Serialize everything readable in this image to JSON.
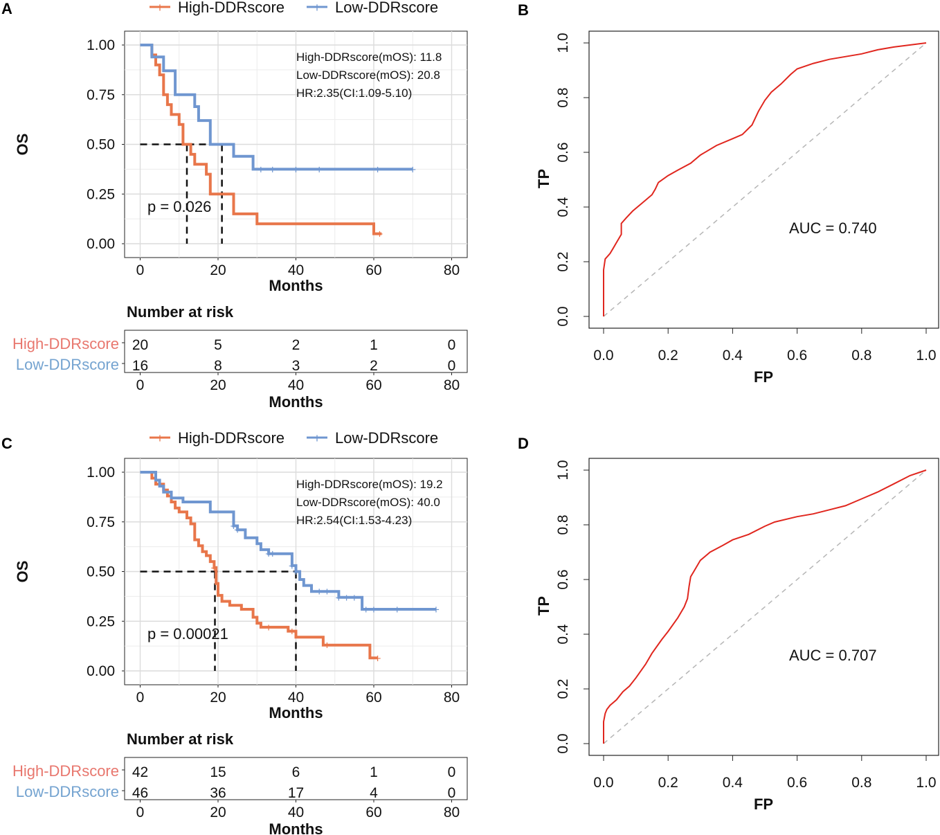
{
  "figure": {
    "panel_letters": [
      "A",
      "B",
      "C",
      "D"
    ]
  },
  "chart_data": [
    {
      "panel": "A",
      "type": "line",
      "subtype": "kaplan-meier",
      "legend": [
        "High-DDRscore",
        "Low-DDRscore"
      ],
      "colors": {
        "high": "#E8764A",
        "low": "#6F96D0",
        "risk_high_label": "#E8776E",
        "risk_low_label": "#74A3D0"
      },
      "ylabel": "OS",
      "xlabel": "Months",
      "xticks": [
        "0",
        "20",
        "40",
        "60",
        "80"
      ],
      "yticks": [
        "0.00",
        "0.25",
        "0.50",
        "0.75",
        "1.00"
      ],
      "xlim": [
        -4,
        84
      ],
      "ylim": [
        0,
        1
      ],
      "annotations": [
        "High-DDRscore(mOS):  11.8",
        "Low-DDRscore(mOS):  20.8",
        "HR:2.35(CI:1.09-5.10)"
      ],
      "pvalue": "p = 0.026",
      "median_lines": [
        12,
        21
      ],
      "series": [
        {
          "name": "High-DDRscore",
          "steps": [
            [
              0,
              1.0
            ],
            [
              3,
              1.0
            ],
            [
              3,
              0.95
            ],
            [
              4,
              0.95
            ],
            [
              4,
              0.9
            ],
            [
              5,
              0.9
            ],
            [
              5,
              0.85
            ],
            [
              6,
              0.85
            ],
            [
              6,
              0.75
            ],
            [
              7,
              0.75
            ],
            [
              7,
              0.7
            ],
            [
              8,
              0.7
            ],
            [
              8,
              0.65
            ],
            [
              10,
              0.65
            ],
            [
              10,
              0.6
            ],
            [
              11,
              0.6
            ],
            [
              11,
              0.5
            ],
            [
              13,
              0.5
            ],
            [
              13,
              0.45
            ],
            [
              14,
              0.45
            ],
            [
              14,
              0.4
            ],
            [
              17,
              0.4
            ],
            [
              17,
              0.35
            ],
            [
              18,
              0.35
            ],
            [
              18,
              0.25
            ],
            [
              24,
              0.25
            ],
            [
              24,
              0.15
            ],
            [
              30,
              0.15
            ],
            [
              30,
              0.1
            ],
            [
              60,
              0.1
            ],
            [
              60,
              0.05
            ],
            [
              62,
              0.05
            ]
          ],
          "censors": [
            [
              61.5,
              0.05
            ]
          ]
        },
        {
          "name": "Low-DDRscore",
          "steps": [
            [
              0,
              1.0
            ],
            [
              3,
              1.0
            ],
            [
              3,
              0.94
            ],
            [
              6,
              0.94
            ],
            [
              6,
              0.87
            ],
            [
              9,
              0.87
            ],
            [
              9,
              0.75
            ],
            [
              14,
              0.75
            ],
            [
              14,
              0.69
            ],
            [
              15,
              0.69
            ],
            [
              15,
              0.62
            ],
            [
              18,
              0.62
            ],
            [
              18,
              0.5
            ],
            [
              24,
              0.5
            ],
            [
              24,
              0.44
            ],
            [
              29,
              0.44
            ],
            [
              29,
              0.375
            ],
            [
              70,
              0.375
            ]
          ],
          "censors": [
            [
              31,
              0.375
            ],
            [
              34,
              0.375
            ],
            [
              40,
              0.375
            ],
            [
              46,
              0.375
            ],
            [
              61,
              0.375
            ],
            [
              70,
              0.375
            ]
          ]
        }
      ],
      "risk_table": {
        "title": "Number at risk",
        "row_labels": [
          "High-DDRscore",
          "Low-DDRscore"
        ],
        "times": [
          0,
          20,
          40,
          60,
          80
        ],
        "high": [
          "20",
          "5",
          "2",
          "1",
          "0"
        ],
        "low": [
          "16",
          "8",
          "3",
          "2",
          "0"
        ],
        "xticks": [
          "0",
          "20",
          "40",
          "60",
          "80"
        ],
        "xlabel": "Months"
      }
    },
    {
      "panel": "B",
      "type": "line",
      "subtype": "roc",
      "xlabel": "FP",
      "ylabel": "TP",
      "xticks": [
        "0.0",
        "0.2",
        "0.4",
        "0.6",
        "0.8",
        "1.0"
      ],
      "yticks": [
        "0.0",
        "0.2",
        "0.4",
        "0.6",
        "0.8",
        "1.0"
      ],
      "xlim": [
        -0.04,
        1.04
      ],
      "ylim": [
        -0.04,
        1.04
      ],
      "auc_label": "AUC =  0.740",
      "color": "#E0261E",
      "points": [
        [
          0,
          0
        ],
        [
          0,
          0.17
        ],
        [
          0.005,
          0.21
        ],
        [
          0.02,
          0.23
        ],
        [
          0.03,
          0.25
        ],
        [
          0.04,
          0.27
        ],
        [
          0.05,
          0.29
        ],
        [
          0.055,
          0.3
        ],
        [
          0.055,
          0.34
        ],
        [
          0.07,
          0.36
        ],
        [
          0.09,
          0.385
        ],
        [
          0.12,
          0.415
        ],
        [
          0.15,
          0.445
        ],
        [
          0.16,
          0.465
        ],
        [
          0.17,
          0.49
        ],
        [
          0.2,
          0.515
        ],
        [
          0.23,
          0.535
        ],
        [
          0.27,
          0.56
        ],
        [
          0.3,
          0.59
        ],
        [
          0.35,
          0.625
        ],
        [
          0.4,
          0.65
        ],
        [
          0.43,
          0.665
        ],
        [
          0.46,
          0.7
        ],
        [
          0.48,
          0.75
        ],
        [
          0.5,
          0.79
        ],
        [
          0.52,
          0.82
        ],
        [
          0.55,
          0.85
        ],
        [
          0.58,
          0.885
        ],
        [
          0.6,
          0.905
        ],
        [
          0.65,
          0.925
        ],
        [
          0.7,
          0.94
        ],
        [
          0.8,
          0.96
        ],
        [
          0.85,
          0.975
        ],
        [
          0.9,
          0.985
        ],
        [
          1.0,
          1.0
        ]
      ]
    },
    {
      "panel": "C",
      "type": "line",
      "subtype": "kaplan-meier",
      "legend": [
        "High-DDRscore",
        "Low-DDRscore"
      ],
      "colors": {
        "high": "#E8764A",
        "low": "#6F96D0",
        "risk_high_label": "#E8776E",
        "risk_low_label": "#74A3D0"
      },
      "ylabel": "OS",
      "xlabel": "Months",
      "xticks": [
        "0",
        "20",
        "40",
        "60",
        "80"
      ],
      "yticks": [
        "0.00",
        "0.25",
        "0.50",
        "0.75",
        "1.00"
      ],
      "xlim": [
        -4,
        84
      ],
      "ylim": [
        0,
        1
      ],
      "annotations": [
        "High-DDRscore(mOS):  19.2",
        "Low-DDRscore(mOS):  40.0",
        "HR:2.54(CI:1.53-4.23)"
      ],
      "pvalue": "p = 0.00021",
      "median_lines": [
        19.2,
        40
      ],
      "series": [
        {
          "name": "High-DDRscore",
          "steps": [
            [
              0,
              1.0
            ],
            [
              3,
              1.0
            ],
            [
              3,
              0.97
            ],
            [
              4,
              0.97
            ],
            [
              4,
              0.94
            ],
            [
              6,
              0.94
            ],
            [
              6,
              0.91
            ],
            [
              7,
              0.91
            ],
            [
              7,
              0.88
            ],
            [
              8,
              0.88
            ],
            [
              8,
              0.85
            ],
            [
              9,
              0.85
            ],
            [
              9,
              0.82
            ],
            [
              10,
              0.82
            ],
            [
              10,
              0.8
            ],
            [
              12,
              0.8
            ],
            [
              12,
              0.77
            ],
            [
              13,
              0.77
            ],
            [
              13,
              0.74
            ],
            [
              14,
              0.74
            ],
            [
              14,
              0.66
            ],
            [
              15,
              0.66
            ],
            [
              15,
              0.63
            ],
            [
              16,
              0.63
            ],
            [
              16,
              0.6
            ],
            [
              17,
              0.6
            ],
            [
              17,
              0.58
            ],
            [
              18,
              0.58
            ],
            [
              18,
              0.55
            ],
            [
              19,
              0.55
            ],
            [
              19,
              0.52
            ],
            [
              19.5,
              0.52
            ],
            [
              19.5,
              0.44
            ],
            [
              20,
              0.44
            ],
            [
              20,
              0.38
            ],
            [
              21,
              0.38
            ],
            [
              21,
              0.35
            ],
            [
              23,
              0.35
            ],
            [
              23,
              0.33
            ],
            [
              26,
              0.33
            ],
            [
              26,
              0.31
            ],
            [
              29,
              0.31
            ],
            [
              29,
              0.27
            ],
            [
              30,
              0.27
            ],
            [
              30,
              0.24
            ],
            [
              31,
              0.24
            ],
            [
              31,
              0.22
            ],
            [
              38,
              0.22
            ],
            [
              38,
              0.2
            ],
            [
              40,
              0.2
            ],
            [
              40,
              0.17
            ],
            [
              47,
              0.17
            ],
            [
              47,
              0.13
            ],
            [
              59,
              0.13
            ],
            [
              59,
              0.065
            ],
            [
              61,
              0.065
            ]
          ],
          "censors": [
            [
              19,
              0.52
            ],
            [
              33,
              0.22
            ],
            [
              39,
              0.2
            ],
            [
              48,
              0.13
            ],
            [
              61,
              0.065
            ]
          ]
        },
        {
          "name": "Low-DDRscore",
          "steps": [
            [
              0,
              1.0
            ],
            [
              4,
              1.0
            ],
            [
              4,
              0.96
            ],
            [
              5,
              0.96
            ],
            [
              5,
              0.93
            ],
            [
              6,
              0.93
            ],
            [
              6,
              0.9
            ],
            [
              8,
              0.9
            ],
            [
              8,
              0.87
            ],
            [
              11,
              0.87
            ],
            [
              11,
              0.85
            ],
            [
              18,
              0.85
            ],
            [
              18,
              0.8
            ],
            [
              24,
              0.8
            ],
            [
              24,
              0.73
            ],
            [
              25,
              0.73
            ],
            [
              25,
              0.71
            ],
            [
              27,
              0.71
            ],
            [
              27,
              0.67
            ],
            [
              30,
              0.67
            ],
            [
              30,
              0.64
            ],
            [
              31,
              0.64
            ],
            [
              31,
              0.61
            ],
            [
              33,
              0.61
            ],
            [
              33,
              0.59
            ],
            [
              39,
              0.59
            ],
            [
              39,
              0.53
            ],
            [
              40,
              0.53
            ],
            [
              40,
              0.5
            ],
            [
              41,
              0.5
            ],
            [
              41,
              0.46
            ],
            [
              42,
              0.46
            ],
            [
              42,
              0.43
            ],
            [
              44,
              0.43
            ],
            [
              44,
              0.4
            ],
            [
              51,
              0.4
            ],
            [
              51,
              0.37
            ],
            [
              57,
              0.37
            ],
            [
              57,
              0.31
            ],
            [
              76,
              0.31
            ]
          ],
          "censors": [
            [
              24,
              0.73
            ],
            [
              25,
              0.71
            ],
            [
              33,
              0.59
            ],
            [
              34,
              0.59
            ],
            [
              39,
              0.53
            ],
            [
              40,
              0.5
            ],
            [
              46,
              0.4
            ],
            [
              48,
              0.4
            ],
            [
              51,
              0.37
            ],
            [
              53,
              0.37
            ],
            [
              55,
              0.37
            ],
            [
              58,
              0.31
            ],
            [
              60,
              0.31
            ],
            [
              66,
              0.31
            ],
            [
              76,
              0.31
            ]
          ]
        }
      ],
      "risk_table": {
        "title": "Number at risk",
        "row_labels": [
          "High-DDRscore",
          "Low-DDRscore"
        ],
        "times": [
          0,
          20,
          40,
          60,
          80
        ],
        "high": [
          "42",
          "15",
          "6",
          "1",
          "0"
        ],
        "low": [
          "46",
          "36",
          "17",
          "4",
          "0"
        ],
        "xticks": [
          "0",
          "20",
          "40",
          "60",
          "80"
        ],
        "xlabel": "Months"
      }
    },
    {
      "panel": "D",
      "type": "line",
      "subtype": "roc",
      "xlabel": "FP",
      "ylabel": "TP",
      "xticks": [
        "0.0",
        "0.2",
        "0.4",
        "0.6",
        "0.8",
        "1.0"
      ],
      "yticks": [
        "0.0",
        "0.2",
        "0.4",
        "0.6",
        "0.8",
        "1.0"
      ],
      "xlim": [
        -0.04,
        1.04
      ],
      "ylim": [
        -0.04,
        1.04
      ],
      "auc_label": "AUC =  0.707",
      "color": "#E0261E",
      "points": [
        [
          0,
          0
        ],
        [
          0,
          0.08
        ],
        [
          0.005,
          0.11
        ],
        [
          0.01,
          0.125
        ],
        [
          0.02,
          0.14
        ],
        [
          0.04,
          0.16
        ],
        [
          0.06,
          0.19
        ],
        [
          0.08,
          0.21
        ],
        [
          0.1,
          0.24
        ],
        [
          0.13,
          0.29
        ],
        [
          0.15,
          0.33
        ],
        [
          0.18,
          0.38
        ],
        [
          0.2,
          0.41
        ],
        [
          0.23,
          0.46
        ],
        [
          0.25,
          0.5
        ],
        [
          0.26,
          0.53
        ],
        [
          0.265,
          0.575
        ],
        [
          0.27,
          0.61
        ],
        [
          0.28,
          0.63
        ],
        [
          0.3,
          0.67
        ],
        [
          0.33,
          0.7
        ],
        [
          0.37,
          0.725
        ],
        [
          0.4,
          0.745
        ],
        [
          0.45,
          0.765
        ],
        [
          0.5,
          0.795
        ],
        [
          0.53,
          0.81
        ],
        [
          0.6,
          0.83
        ],
        [
          0.65,
          0.84
        ],
        [
          0.7,
          0.855
        ],
        [
          0.75,
          0.87
        ],
        [
          0.8,
          0.895
        ],
        [
          0.85,
          0.92
        ],
        [
          0.9,
          0.95
        ],
        [
          0.95,
          0.98
        ],
        [
          1.0,
          1.0
        ]
      ]
    }
  ]
}
